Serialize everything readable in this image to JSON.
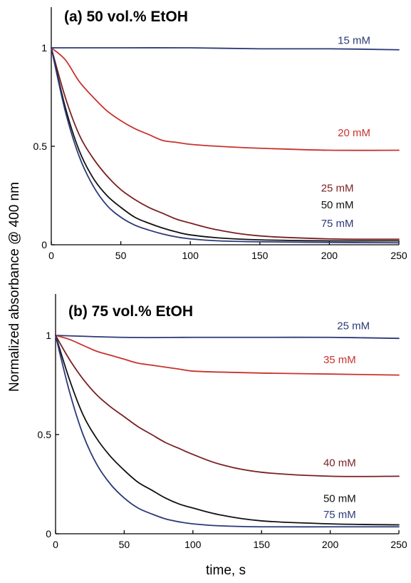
{
  "colors": {
    "navy": "#2b3a78",
    "red": "#c8332e",
    "maroon": "#7a1f22",
    "black": "#111111"
  },
  "figure": {
    "ylabel": "Normalized absorbance  @ 400 nm",
    "xlabel": "time, s"
  },
  "chart_data": [
    {
      "type": "line",
      "title": "(a) 50 vol.% EtOH",
      "xlim": [
        0,
        250
      ],
      "ylim": [
        0,
        1
      ],
      "xticks": [
        "0",
        "50",
        "100",
        "150",
        "200",
        "250"
      ],
      "yticks": [
        "0",
        "0.5",
        "1"
      ],
      "grid": false,
      "series": [
        {
          "name": "15 mM",
          "color": "navy",
          "x": [
            0,
            50,
            100,
            150,
            200,
            250
          ],
          "y": [
            1.0,
            1.0,
            1.0,
            0.995,
            0.995,
            0.99
          ]
        },
        {
          "name": "20 mM",
          "color": "red",
          "x": [
            0,
            10,
            20,
            30,
            40,
            50,
            60,
            70,
            80,
            90,
            100,
            120,
            150,
            200,
            250
          ],
          "y": [
            1.0,
            0.94,
            0.83,
            0.75,
            0.68,
            0.63,
            0.59,
            0.56,
            0.53,
            0.52,
            0.51,
            0.5,
            0.49,
            0.48,
            0.48
          ]
        },
        {
          "name": "25 mM",
          "color": "maroon",
          "x": [
            0,
            10,
            20,
            30,
            40,
            50,
            60,
            70,
            80,
            90,
            100,
            120,
            150,
            200,
            250
          ],
          "y": [
            1.0,
            0.75,
            0.56,
            0.44,
            0.35,
            0.28,
            0.23,
            0.19,
            0.16,
            0.13,
            0.11,
            0.075,
            0.045,
            0.03,
            0.028
          ]
        },
        {
          "name": "50 mM",
          "color": "black",
          "x": [
            0,
            10,
            20,
            30,
            40,
            50,
            60,
            70,
            80,
            90,
            100,
            120,
            150,
            200,
            250
          ],
          "y": [
            1.0,
            0.7,
            0.48,
            0.34,
            0.25,
            0.19,
            0.14,
            0.11,
            0.085,
            0.065,
            0.05,
            0.035,
            0.025,
            0.02,
            0.02
          ]
        },
        {
          "name": "75 mM",
          "color": "navy",
          "x": [
            0,
            10,
            20,
            30,
            40,
            50,
            60,
            70,
            80,
            90,
            100,
            120,
            150,
            200,
            250
          ],
          "y": [
            1.0,
            0.68,
            0.45,
            0.3,
            0.2,
            0.14,
            0.1,
            0.075,
            0.055,
            0.04,
            0.03,
            0.02,
            0.015,
            0.012,
            0.01
          ]
        }
      ],
      "annotations": [
        {
          "text": "15 mM",
          "series": "15 mM",
          "x": 206,
          "y": 1.02
        },
        {
          "text": "20 mM",
          "series": "20 mM",
          "x": 206,
          "y": 0.55
        },
        {
          "text": "25 mM",
          "series": "25 mM",
          "x": 194,
          "y": 0.27
        },
        {
          "text": "50 mM",
          "series": "50 mM",
          "x": 194,
          "y": 0.185
        },
        {
          "text": "75 mM",
          "series": "75 mM",
          "x": 194,
          "y": 0.09
        }
      ]
    },
    {
      "type": "line",
      "title": "(b) 75 vol.% EtOH",
      "xlim": [
        0,
        250
      ],
      "ylim": [
        0,
        1
      ],
      "xticks": [
        "0",
        "50",
        "100",
        "150",
        "200",
        "250"
      ],
      "yticks": [
        "0",
        "0.5",
        "1"
      ],
      "grid": false,
      "series": [
        {
          "name": "25 mM",
          "color": "navy",
          "x": [
            0,
            50,
            100,
            150,
            200,
            250
          ],
          "y": [
            1.0,
            0.99,
            0.99,
            0.99,
            0.99,
            0.985
          ]
        },
        {
          "name": "35 mM",
          "color": "red",
          "x": [
            0,
            10,
            20,
            30,
            40,
            50,
            60,
            70,
            80,
            90,
            100,
            120,
            150,
            200,
            250
          ],
          "y": [
            1.0,
            0.98,
            0.95,
            0.92,
            0.9,
            0.88,
            0.86,
            0.85,
            0.84,
            0.83,
            0.82,
            0.815,
            0.81,
            0.805,
            0.8
          ]
        },
        {
          "name": "40 mM",
          "color": "maroon",
          "x": [
            0,
            10,
            20,
            30,
            40,
            50,
            60,
            70,
            80,
            90,
            100,
            120,
            150,
            200,
            250
          ],
          "y": [
            1.0,
            0.88,
            0.78,
            0.7,
            0.64,
            0.59,
            0.54,
            0.5,
            0.46,
            0.43,
            0.4,
            0.35,
            0.31,
            0.29,
            0.29
          ]
        },
        {
          "name": "50 mM",
          "color": "black",
          "x": [
            0,
            10,
            20,
            30,
            40,
            50,
            60,
            70,
            80,
            90,
            100,
            120,
            150,
            200,
            250
          ],
          "y": [
            1.0,
            0.78,
            0.6,
            0.48,
            0.39,
            0.32,
            0.26,
            0.22,
            0.18,
            0.15,
            0.13,
            0.095,
            0.065,
            0.05,
            0.045
          ]
        },
        {
          "name": "75 mM",
          "color": "navy",
          "x": [
            0,
            10,
            20,
            30,
            40,
            50,
            60,
            70,
            80,
            90,
            100,
            120,
            150,
            200,
            250
          ],
          "y": [
            1.0,
            0.72,
            0.5,
            0.35,
            0.25,
            0.18,
            0.13,
            0.1,
            0.075,
            0.06,
            0.05,
            0.04,
            0.035,
            0.035,
            0.035
          ]
        }
      ],
      "annotations": [
        {
          "text": "25 mM",
          "series": "25 mM",
          "x": 205,
          "y": 1.03
        },
        {
          "text": "35 mM",
          "series": "35 mM",
          "x": 195,
          "y": 0.86
        },
        {
          "text": "40 mM",
          "series": "40 mM",
          "x": 195,
          "y": 0.34
        },
        {
          "text": "50 mM",
          "series": "50 mM",
          "x": 195,
          "y": 0.16
        },
        {
          "text": "75 mM",
          "series": "75 mM",
          "x": 195,
          "y": 0.08
        }
      ]
    }
  ]
}
